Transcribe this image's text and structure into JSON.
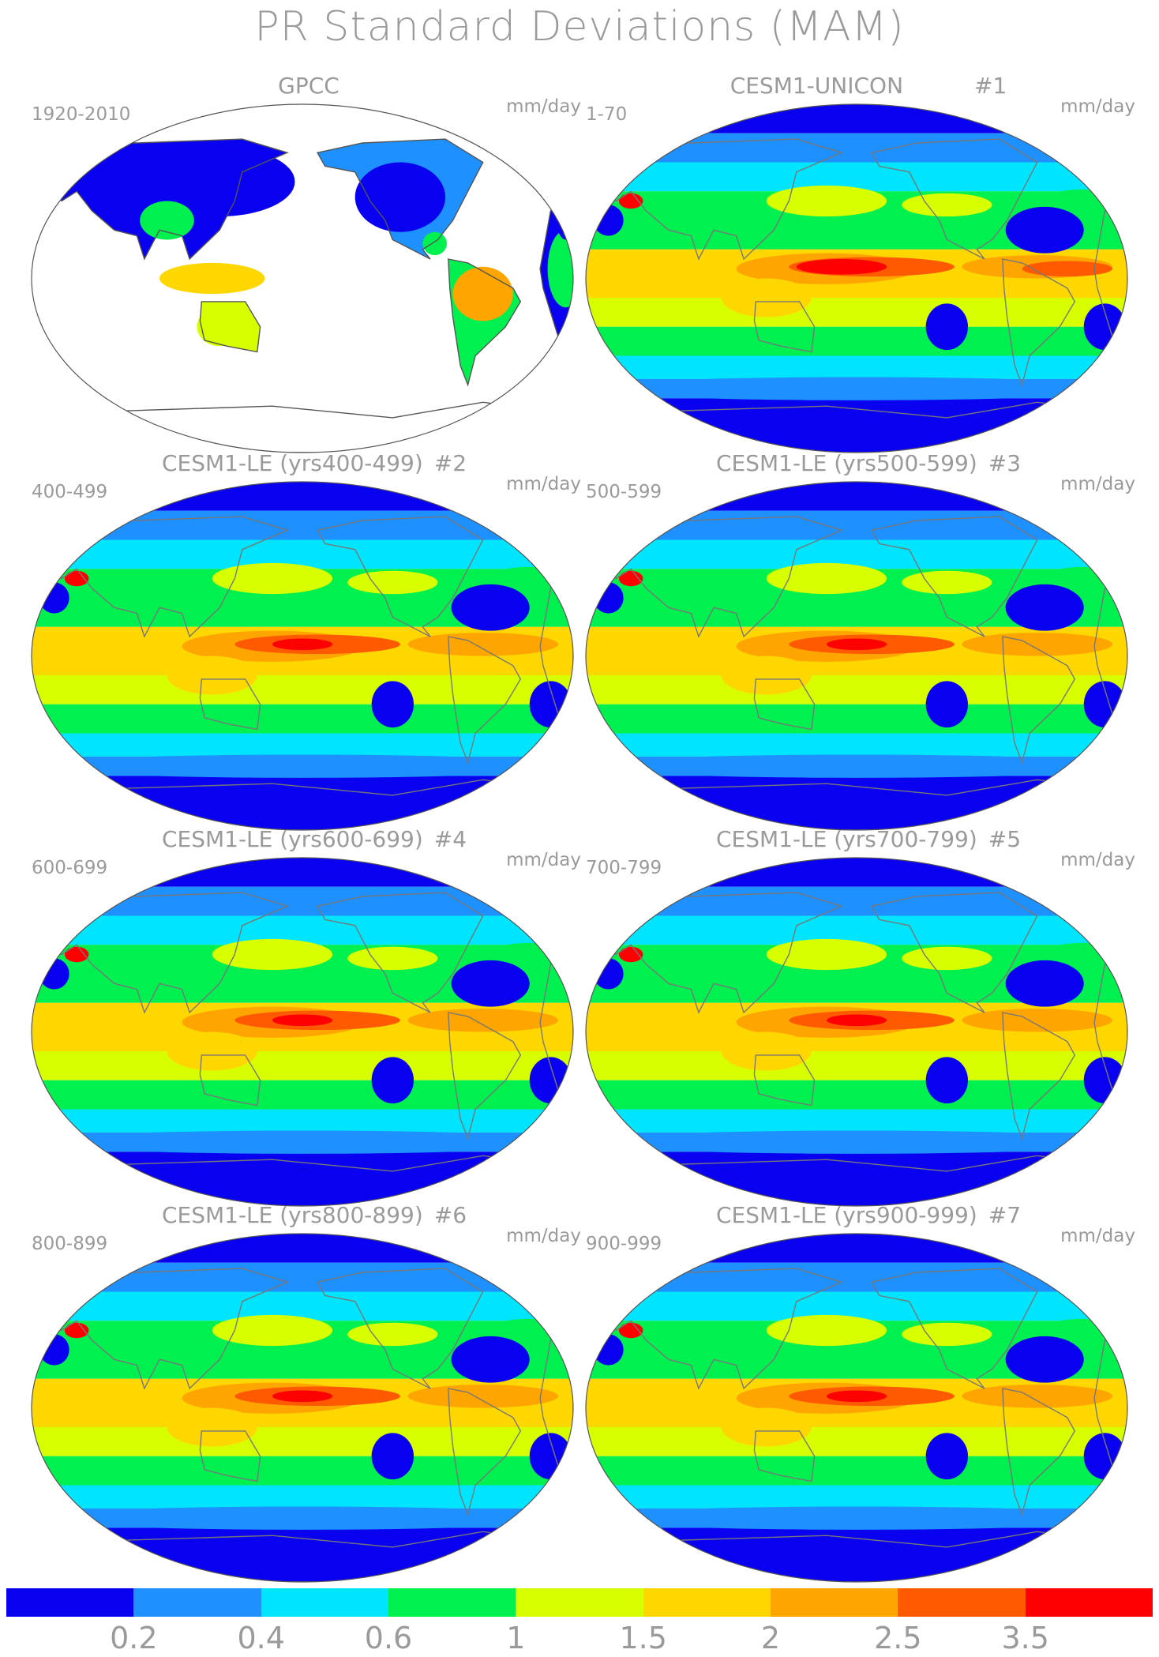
{
  "title": "PR Standard Deviations (MAM)",
  "panels": [
    {
      "name": "GPCC",
      "number": "",
      "range": "1920-2010",
      "units": "mm/day",
      "type": "obs"
    },
    {
      "name": "CESM1-UNICON",
      "number": "#1",
      "range": "1-70",
      "units": "mm/day",
      "type": "unicon"
    },
    {
      "name": "CESM1-LE (yrs400-499)",
      "number": "#2",
      "range": "400-499",
      "units": "mm/day",
      "type": "le"
    },
    {
      "name": "CESM1-LE (yrs500-599)",
      "number": "#3",
      "range": "500-599",
      "units": "mm/day",
      "type": "le"
    },
    {
      "name": "CESM1-LE (yrs600-699)",
      "number": "#4",
      "range": "600-699",
      "units": "mm/day",
      "type": "le"
    },
    {
      "name": "CESM1-LE (yrs700-799)",
      "number": "#5",
      "range": "700-799",
      "units": "mm/day",
      "type": "le"
    },
    {
      "name": "CESM1-LE (yrs800-899)",
      "number": "#6",
      "range": "800-899",
      "units": "mm/day",
      "type": "le"
    },
    {
      "name": "CESM1-LE (yrs900-999)",
      "number": "#7",
      "range": "900-999",
      "units": "mm/day",
      "type": "le"
    }
  ],
  "legend": {
    "colors": [
      "#0a00f0",
      "#1e90ff",
      "#00e5ff",
      "#00f050",
      "#d7ff00",
      "#ffd700",
      "#ffa500",
      "#ff5a00",
      "#ff0000"
    ],
    "ticks": [
      "0.2",
      "0.4",
      "0.6",
      "1",
      "1.5",
      "2",
      "2.5",
      "3.5"
    ]
  }
}
